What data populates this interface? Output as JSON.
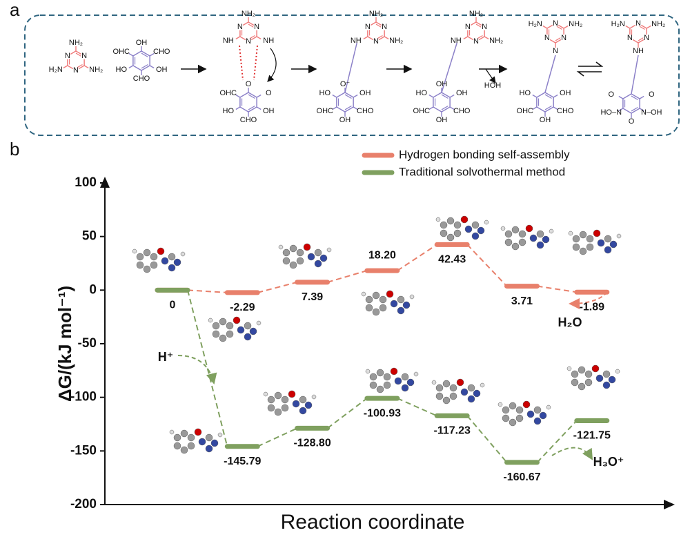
{
  "panel_a": {
    "label": "a",
    "ring_atom": "N",
    "molecules": [
      {
        "labels": [
          "NH₂",
          "NH₂",
          "H₂N"
        ]
      },
      {
        "labels": [
          "OH",
          "CHO",
          "OH",
          "CHO",
          "HO",
          "OHC"
        ]
      },
      {
        "labels": [
          "NH₂",
          "NH",
          "NH",
          "O",
          "O",
          "OH",
          "CHO",
          "HO",
          "OHC"
        ]
      },
      {
        "labels": [
          "NH₂",
          "NH₂",
          "NH",
          "O⁻",
          "OH",
          "CHO",
          "OH",
          "OHC",
          "HO"
        ]
      },
      {
        "labels": [
          "NH₂",
          "NH₂",
          "NH",
          "OH",
          "OH",
          "CHO",
          "OH",
          "OHC",
          "HO",
          "HOH"
        ]
      },
      {
        "labels": [
          "H₂N",
          "NH₂",
          "N",
          "OH",
          "CHO",
          "OH",
          "OHC",
          "HO"
        ]
      },
      {
        "labels": [
          "H₂N",
          "NH₂",
          "NH",
          "O",
          "N–OH",
          "O",
          "HO–N",
          "O"
        ]
      }
    ]
  },
  "chart_data": {
    "type": "level",
    "panel_label": "b",
    "ylabel": "ΔG/(kJ mol⁻¹)",
    "xlabel": "Reaction coordinate",
    "ylim": [
      -200,
      100
    ],
    "yticks": [
      -200,
      -150,
      -100,
      -50,
      0,
      50,
      100
    ],
    "legend": "top-right",
    "series": [
      {
        "name": "Hydrogen bonding self-assembly",
        "color": "#e8806b",
        "values": [
          0,
          -2.29,
          7.39,
          18.2,
          42.43,
          3.71,
          -1.89
        ],
        "value_labels": [
          null,
          "-2.29",
          "7.39",
          "18.20",
          "42.43",
          "3.71",
          "-1.89"
        ]
      },
      {
        "name": "Traditional solvothermal method",
        "color": "#7fa05f",
        "values": [
          0,
          -145.79,
          -128.8,
          -100.93,
          -117.23,
          -160.67,
          -121.75
        ],
        "value_labels": [
          "0",
          "-145.79",
          "-128.80",
          "-100.93",
          "-117.23",
          "-160.67",
          "-121.75"
        ]
      }
    ],
    "annotations": [
      "H₂O",
      "H⁺",
      "H₃O⁺"
    ]
  }
}
